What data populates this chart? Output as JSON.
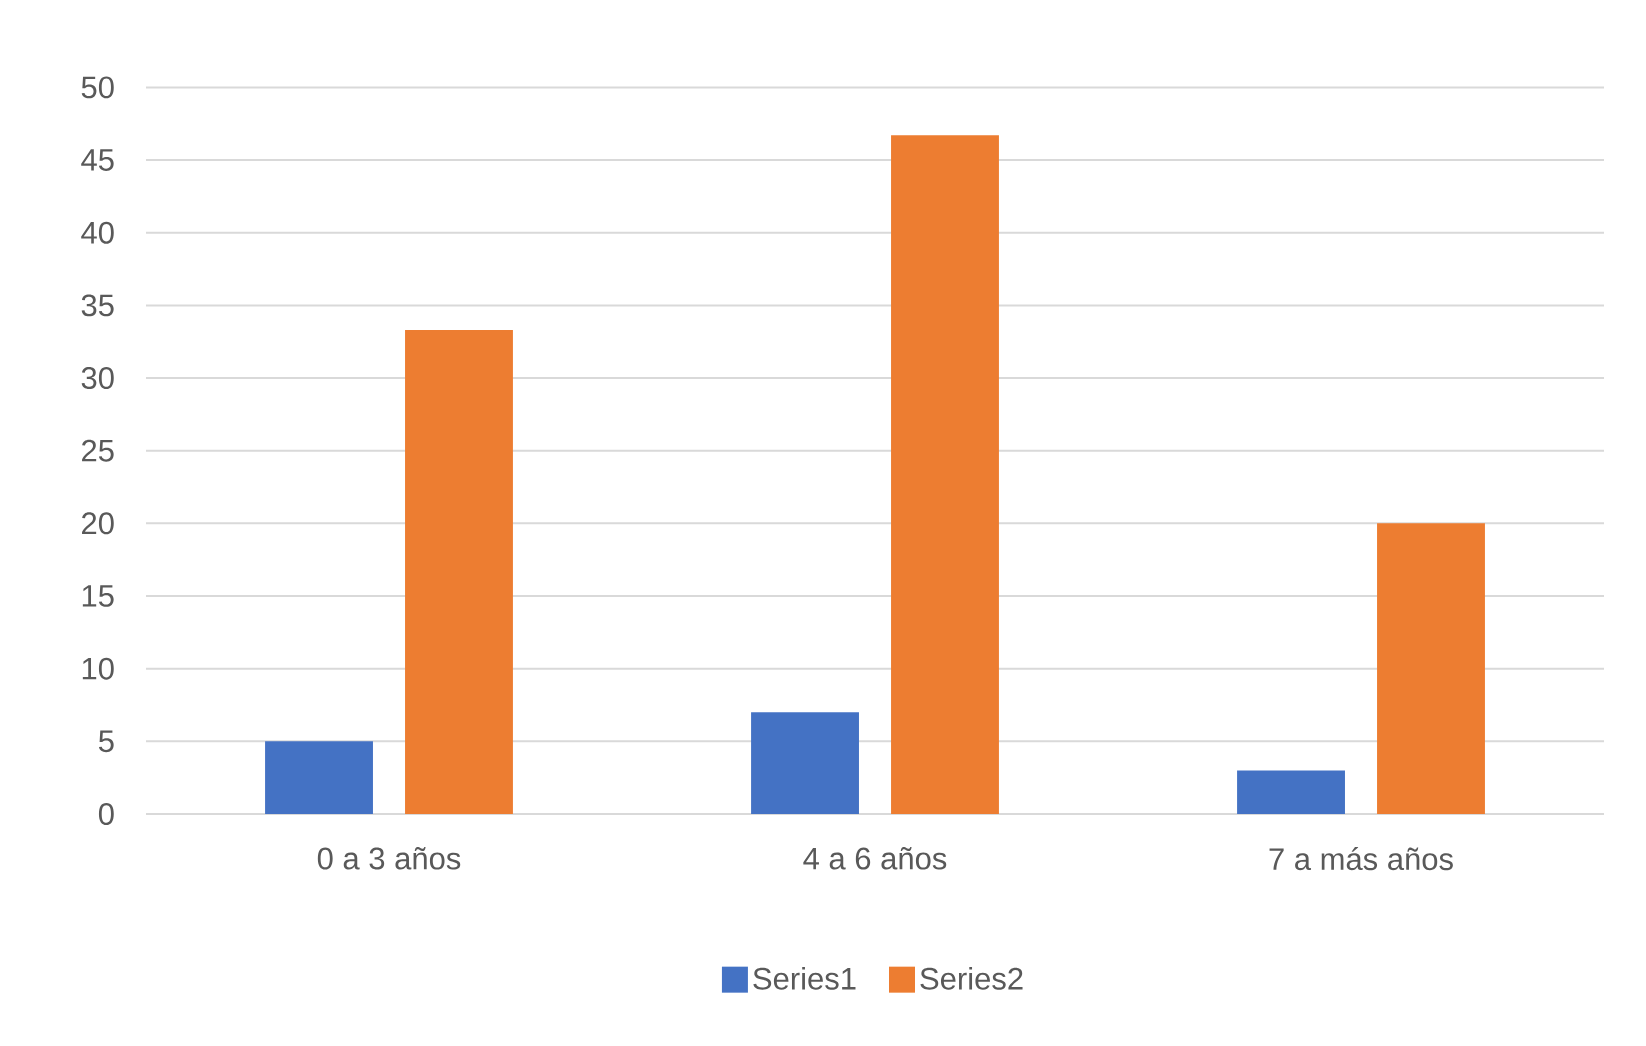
{
  "chart_data": {
    "type": "bar",
    "categories": [
      "0 a 3 años",
      "4 a 6 años",
      "7 a más años"
    ],
    "series": [
      {
        "name": "Series1",
        "color": "#4472c4",
        "values": [
          5,
          7,
          3
        ]
      },
      {
        "name": "Series2",
        "color": "#ed7d31",
        "values": [
          33.3,
          46.7,
          20
        ]
      }
    ],
    "ylim": [
      0,
      50
    ],
    "yticks": [
      0,
      5,
      10,
      15,
      20,
      25,
      30,
      35,
      40,
      45,
      50
    ],
    "grid": "y",
    "legend": "bottom"
  }
}
